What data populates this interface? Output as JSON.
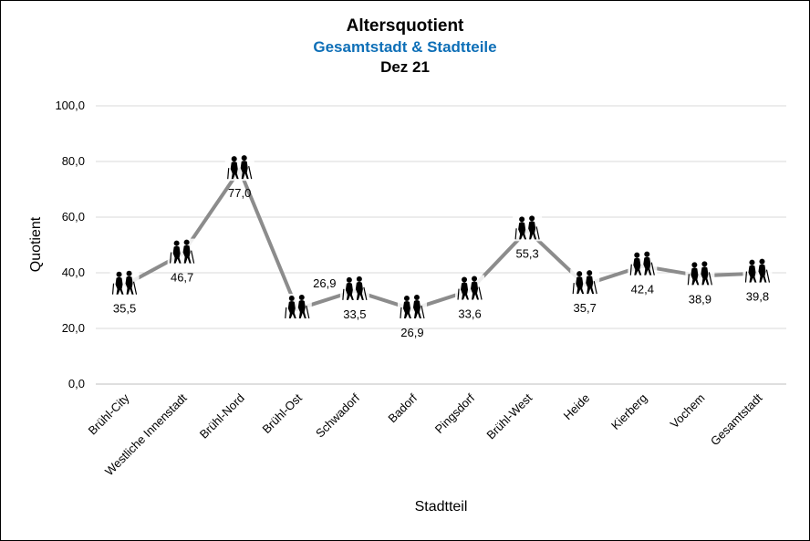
{
  "chart_data": {
    "type": "line",
    "title": "Altersquotient",
    "subtitle": "Gesamtstadt & Stadtteile",
    "subtitle2": "Dez 21",
    "xlabel": "Stadtteil",
    "ylabel": "Quotient",
    "ylim": [
      0,
      100
    ],
    "yticks": [
      "0,0",
      "20,0",
      "40,0",
      "60,0",
      "80,0",
      "100,0"
    ],
    "grid": true,
    "marker_icon": "elderly-couple-icon",
    "categories": [
      "Brühl-City",
      "Westliche Innenstadt",
      "Brühl-Nord",
      "Brühl-Ost",
      "Schwadorf",
      "Badorf",
      "Pingsdorf",
      "Brühl-West",
      "Heide",
      "Kierberg",
      "Vochem",
      "Gesamtstadt"
    ],
    "values": [
      35.5,
      46.7,
      77.0,
      26.9,
      33.5,
      26.9,
      33.6,
      55.3,
      35.7,
      42.4,
      38.9,
      39.8
    ],
    "data_labels": [
      "35,5",
      "46,7",
      "77,0",
      "26,9",
      "33,5",
      "26,9",
      "33,6",
      "55,3",
      "35,7",
      "42,4",
      "38,9",
      "39,8"
    ],
    "line_color": "#8c8c8c",
    "highlight_label_color": "#c55a11",
    "subtitle_color": "#0e6fb7"
  }
}
